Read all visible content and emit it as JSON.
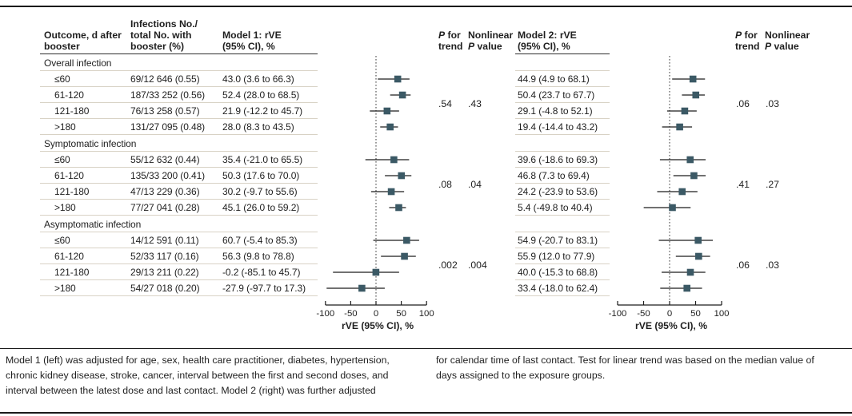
{
  "colors": {
    "marker": "#3b5965",
    "text": "#1f1f1f",
    "rule_light": "#d8d2c5",
    "rule_dark": "#2e2e2e"
  },
  "labels": {
    "p": "P",
    "for": "for",
    "trend": "trend",
    "nonlinear": "Nonlinear",
    "value": "value"
  },
  "header": {
    "outcome": "Outcome, d after\nbooster",
    "infections": "Infections No./\ntotal No. with\nbooster (%)",
    "model1": "Model 1: rVE\n(95% CI), %",
    "model2": "Model 2: rVE\n(95% CI), %"
  },
  "chart_data": {
    "type": "forest",
    "xlabel": "rVE (95% CI), %",
    "xlim": [
      -100,
      100
    ],
    "xticks": [
      -100,
      -50,
      0,
      50,
      100
    ],
    "xtick_labels": [
      "-100",
      "-50",
      "0",
      "50",
      "100"
    ],
    "series_names": [
      "Model 1: rVE (95% CI), %",
      "Model 2: rVE (95% CI), %"
    ],
    "sections": [
      {
        "label": "Overall infection",
        "rows": [
          {
            "outcome": "≤60",
            "infections": "69/12 646 (0.55)",
            "m1_text": "43.0 (3.6 to 66.3)",
            "m1": [
              43.0,
              3.6,
              66.3
            ],
            "m2_text": "44.9 (4.9 to 68.1)",
            "m2": [
              44.9,
              4.9,
              68.1
            ]
          },
          {
            "outcome": "61-120",
            "infections": "187/33 252 (0.56)",
            "m1_text": "52.4 (28.0 to 68.5)",
            "m1": [
              52.4,
              28.0,
              68.5
            ],
            "m2_text": "50.4 (23.7 to 67.7)",
            "m2": [
              50.4,
              23.7,
              67.7
            ]
          },
          {
            "outcome": "121-180",
            "infections": "76/13 258 (0.57)",
            "m1_text": "21.9 (-12.2 to 45.7)",
            "m1": [
              21.9,
              -12.2,
              45.7
            ],
            "m2_text": "29.1 (-4.8 to 52.1)",
            "m2": [
              29.1,
              -4.8,
              52.1
            ]
          },
          {
            "outcome": ">180",
            "infections": "131/27 095 (0.48)",
            "m1_text": "28.0 (8.3 to 43.5)",
            "m1": [
              28.0,
              8.3,
              43.5
            ],
            "m2_text": "19.4 (-14.4 to 43.2)",
            "m2": [
              19.4,
              -14.4,
              43.2
            ]
          }
        ],
        "m1_p_trend": ".54",
        "m1_p_nonlinear": ".43",
        "m2_p_trend": ".06",
        "m2_p_nonlinear": ".03"
      },
      {
        "label": "Symptomatic infection",
        "rows": [
          {
            "outcome": "≤60",
            "infections": "55/12 632 (0.44)",
            "m1_text": "35.4 (-21.0 to 65.5)",
            "m1": [
              35.4,
              -21.0,
              65.5
            ],
            "m2_text": "39.6 (-18.6 to 69.3)",
            "m2": [
              39.6,
              -18.6,
              69.3
            ]
          },
          {
            "outcome": "61-120",
            "infections": "135/33 200 (0.41)",
            "m1_text": "50.3 (17.6 to 70.0)",
            "m1": [
              50.3,
              17.6,
              70.0
            ],
            "m2_text": "46.8 (7.3 to 69.4)",
            "m2": [
              46.8,
              7.3,
              69.4
            ]
          },
          {
            "outcome": "121-180",
            "infections": "47/13 229 (0.36)",
            "m1_text": "30.2 (-9.7 to 55.6)",
            "m1": [
              30.2,
              -9.7,
              55.6
            ],
            "m2_text": "24.2 (-23.9 to 53.6)",
            "m2": [
              24.2,
              -23.9,
              53.6
            ]
          },
          {
            "outcome": ">180",
            "infections": "77/27 041 (0.28)",
            "m1_text": "45.1 (26.0 to 59.2)",
            "m1": [
              45.1,
              26.0,
              59.2
            ],
            "m2_text": "5.4 (-49.8 to 40.4)",
            "m2": [
              5.4,
              -49.8,
              40.4
            ]
          }
        ],
        "m1_p_trend": ".08",
        "m1_p_nonlinear": ".04",
        "m2_p_trend": ".41",
        "m2_p_nonlinear": ".27"
      },
      {
        "label": "Asymptomatic infection",
        "rows": [
          {
            "outcome": "≤60",
            "infections": "14/12 591 (0.11)",
            "m1_text": "60.7 (-5.4 to 85.3)",
            "m1": [
              60.7,
              -5.4,
              85.3
            ],
            "m2_text": "54.9 (-20.7 to 83.1)",
            "m2": [
              54.9,
              -20.7,
              83.1
            ]
          },
          {
            "outcome": "61-120",
            "infections": "52/33 117 (0.16)",
            "m1_text": "56.3 (9.8 to 78.8)",
            "m1": [
              56.3,
              9.8,
              78.8
            ],
            "m2_text": "55.9 (12.0 to 77.9)",
            "m2": [
              55.9,
              12.0,
              77.9
            ]
          },
          {
            "outcome": "121-180",
            "infections": "29/13 211 (0.22)",
            "m1_text": "-0.2 (-85.1 to 45.7)",
            "m1": [
              -0.2,
              -85.1,
              45.7
            ],
            "m2_text": "40.0 (-15.3 to 68.8)",
            "m2": [
              40.0,
              -15.3,
              68.8
            ]
          },
          {
            "outcome": ">180",
            "infections": "54/27 018 (0.20)",
            "m1_text": "-27.9 (-97.7 to 17.3)",
            "m1": [
              -27.9,
              -97.7,
              17.3
            ],
            "m2_text": "33.4 (-18.0 to 62.4)",
            "m2": [
              33.4,
              -18.0,
              62.4
            ]
          }
        ],
        "m1_p_trend": ".002",
        "m1_p_nonlinear": ".004",
        "m2_p_trend": ".06",
        "m2_p_nonlinear": ".03"
      }
    ]
  },
  "footnote": {
    "left": "Model 1 (left) was adjusted for age, sex, health care practitioner, diabetes, hypertension,\nchronic kidney disease, stroke, cancer, interval between the first and second doses, and\ninterval between the latest dose and last contact. Model 2 (right) was further adjusted",
    "right": "for calendar time of last contact. Test for linear trend was based on the median value of\ndays assigned to the exposure groups."
  }
}
